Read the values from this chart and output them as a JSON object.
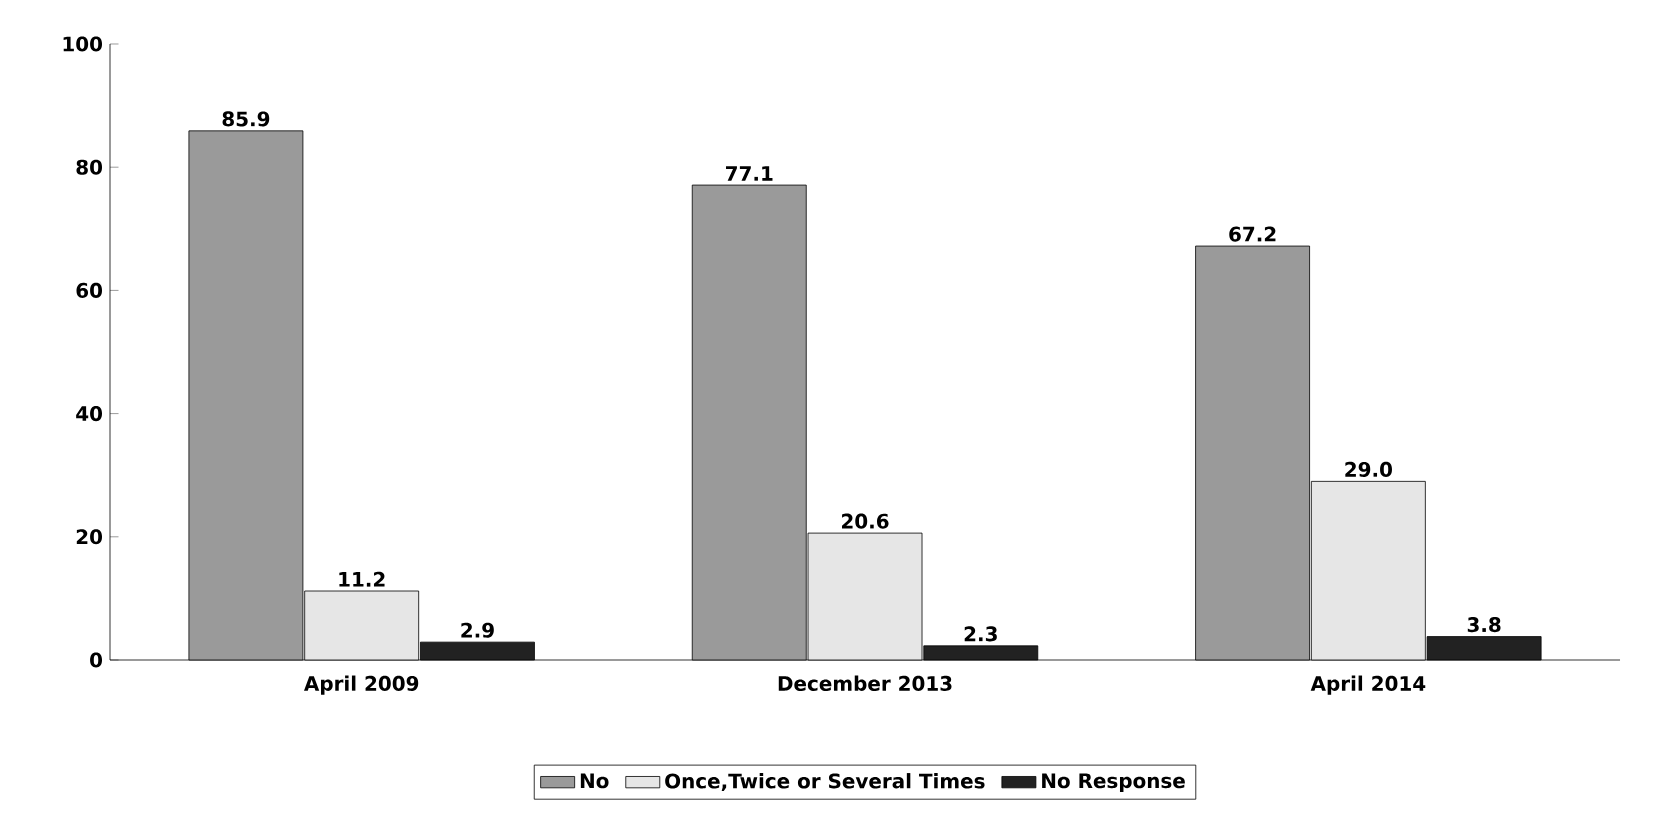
{
  "chart_data": {
    "type": "bar",
    "categories": [
      "April 2009",
      "December 2013",
      "April 2014"
    ],
    "series": [
      {
        "name": "No",
        "color": "#9a9a9a",
        "values": [
          85.9,
          77.1,
          67.2
        ],
        "value_labels": [
          "85.9",
          "77.1",
          "67.2"
        ]
      },
      {
        "name": "Once,Twice or Several Times",
        "color": "#e6e6e6",
        "values": [
          11.2,
          20.6,
          29.0
        ],
        "value_labels": [
          "11.2",
          "20.6",
          "29.0"
        ]
      },
      {
        "name": "No Response",
        "color": "#222222",
        "values": [
          2.9,
          2.3,
          3.8
        ],
        "value_labels": [
          "2.9",
          "2.3",
          "3.8"
        ]
      }
    ],
    "ylim": [
      0,
      100
    ],
    "yticks": [
      0,
      20,
      40,
      60,
      80,
      100
    ],
    "legend": "bottom"
  }
}
